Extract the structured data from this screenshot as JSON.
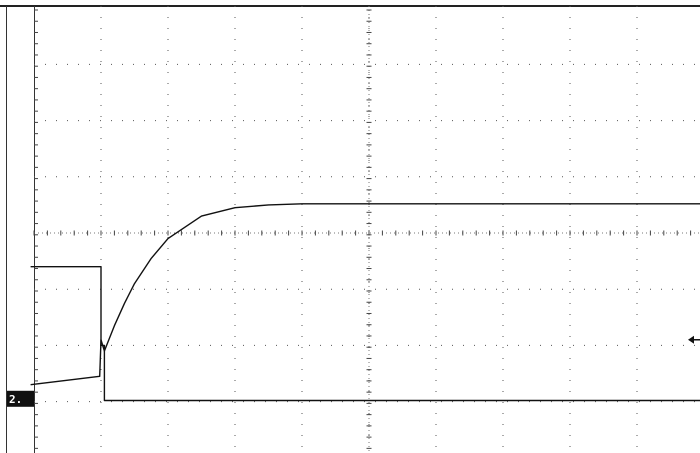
{
  "chart_data": {
    "type": "line",
    "grid": true,
    "grid_divisions": {
      "x": 10,
      "y": 8
    },
    "xlim": [
      0,
      10
    ],
    "ylim": [
      -4,
      4
    ],
    "channel_marker": {
      "label": "2.",
      "level": -2.95
    },
    "trigger_arrow_level": -1.9,
    "series": [
      {
        "x": [
          -0.05,
          0.98,
          1.0,
          1.05,
          1.1,
          1.2,
          1.35,
          1.5,
          1.75,
          2.0,
          2.5,
          3.0,
          3.5,
          4.0,
          5.0,
          6.0,
          7.0,
          8.0,
          9.0,
          10.0
        ],
        "values": [
          -2.7,
          -2.55,
          -1.9,
          -2.1,
          -1.95,
          -1.65,
          -1.25,
          -0.9,
          -0.45,
          -0.1,
          0.3,
          0.45,
          0.5,
          0.52,
          0.52,
          0.52,
          0.52,
          0.52,
          0.52,
          0.52
        ]
      },
      {
        "x": [
          -0.05,
          1.0,
          1.0,
          1.05,
          1.05,
          2.0,
          4.0,
          6.0,
          8.0,
          10.0
        ],
        "values": [
          -0.6,
          -0.6,
          -2.0,
          -2.0,
          -2.98,
          -2.98,
          -2.98,
          -2.98,
          -2.98,
          -2.98
        ]
      }
    ]
  }
}
